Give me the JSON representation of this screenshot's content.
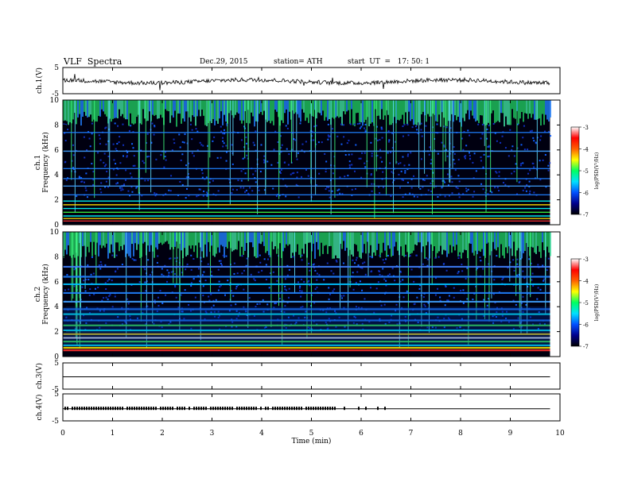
{
  "header": {
    "title": "VLF  Spectra",
    "date": "Dec.29, 2015",
    "station": "station= ATH",
    "start": "start  UT  =   17: 50: 1"
  },
  "chart_data": {
    "type": "heatmap",
    "x_label": "Time  (min)",
    "x_range": [
      0,
      10
    ],
    "x_ticks": [
      "0",
      "1",
      "2",
      "3",
      "4",
      "5",
      "6",
      "7",
      "8",
      "9",
      "10"
    ],
    "panels": [
      {
        "kind": "line",
        "label": "ch.1(V)",
        "y_range": [
          -5,
          5
        ],
        "y_ticks": [
          "5",
          "-5"
        ],
        "series_description": "noisy waveform near 0 V with occasional spikes"
      },
      {
        "kind": "spectrogram",
        "label": "ch.1\nFrequency  (kHz)",
        "y_label_line1": "ch.1",
        "y_label_line2": "Frequency  (kHz)",
        "y_range": [
          0,
          10
        ],
        "y_ticks": [
          "0",
          "2",
          "4",
          "6",
          "8",
          "10"
        ],
        "data_end_min": 9.8
      },
      {
        "kind": "spectrogram",
        "label": "ch.2\nFrequency  (kHz)",
        "y_label_line1": "ch.2",
        "y_label_line2": "Frequency  (kHz)",
        "y_range": [
          0,
          10
        ],
        "y_ticks": [
          "0",
          "2",
          "4",
          "6",
          "8",
          "10"
        ],
        "data_end_min": 9.8
      },
      {
        "kind": "line",
        "label": "ch.3(V)",
        "y_range": [
          -5,
          5
        ],
        "y_ticks": [
          "5",
          "-5"
        ],
        "value": -0.3
      },
      {
        "kind": "line",
        "label": "ch.4(V)",
        "y_range": [
          -5,
          5
        ],
        "y_ticks": [
          "5",
          "-5"
        ],
        "value": -0.5,
        "pulse_end_min": 7.0
      }
    ],
    "colorbar": {
      "label": "log(PSD(V²/Hz)",
      "range": [
        -7,
        -3
      ],
      "ticks": [
        "-3",
        "-4",
        "-5",
        "-6",
        "-7"
      ],
      "colors": [
        "#000000",
        "#00008c",
        "#0050ff",
        "#00e0ff",
        "#00ff60",
        "#ffff00",
        "#ff6000",
        "#ff0000",
        "#ffffff"
      ]
    }
  }
}
